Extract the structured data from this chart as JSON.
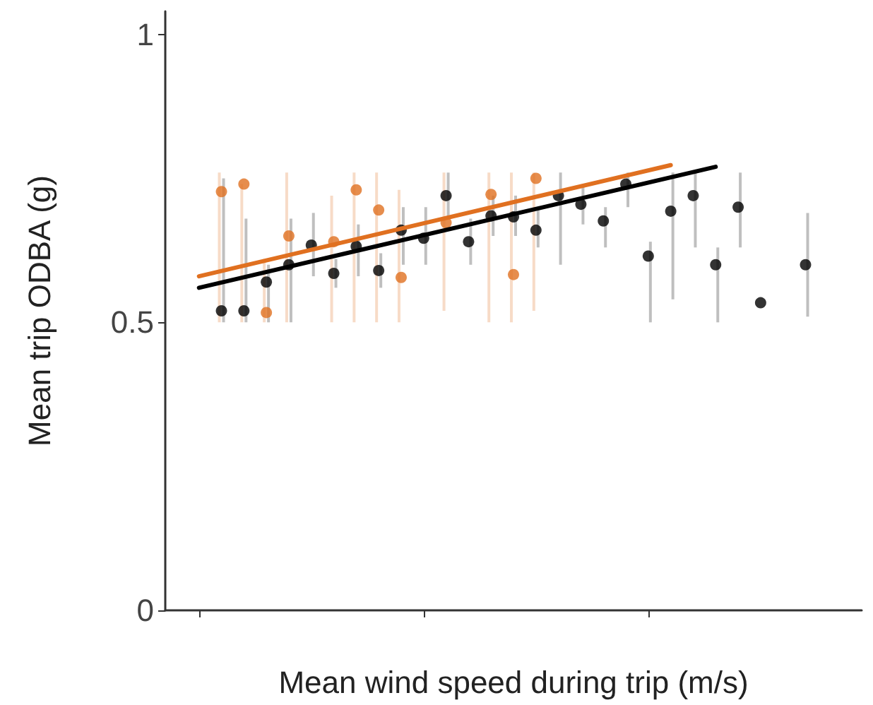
{
  "chart_data": {
    "type": "scatter",
    "xlabel": "Mean wind speed during trip (m/s)",
    "ylabel": "Mean trip ODBA (g)",
    "categories": [
      null,
      null,
      null,
      null,
      null,
      null,
      null,
      null,
      null,
      null,
      null,
      null,
      null,
      null,
      null,
      null,
      null,
      null,
      null,
      null,
      null,
      null,
      null,
      null,
      null,
      null,
      null,
      null,
      null,
      null,
      null
    ],
    "ylim": [
      0,
      1.04
    ],
    "yticks": [
      0,
      0.5,
      1
    ],
    "grid": false,
    "marker": "circle",
    "series": [
      {
        "color": "#e07020",
        "values": [
          null,
          null,
          0.727,
          0.74,
          0.517,
          0.65,
          null,
          0.64,
          0.73,
          0.695,
          0.578,
          null,
          0.673,
          null,
          0.722,
          0.583,
          0.75,
          null,
          null,
          null,
          null,
          null,
          null,
          null,
          null,
          null,
          null,
          null,
          null,
          null,
          null
        ],
        "errors": [
          null,
          null,
          [
            0.5,
            0.76
          ],
          [
            0.5,
            0.74
          ],
          [
            0.5,
            0.61
          ],
          [
            0.5,
            0.76
          ],
          null,
          [
            0.5,
            0.72
          ],
          [
            0.5,
            0.76
          ],
          [
            0.5,
            0.76
          ],
          [
            0.5,
            0.73
          ],
          null,
          [
            0.52,
            0.76
          ],
          null,
          [
            0.5,
            0.76
          ],
          [
            0.5,
            0.76
          ],
          [
            0.52,
            0.76
          ],
          null,
          null,
          null,
          null,
          null,
          null,
          null,
          null,
          null,
          null,
          null,
          null,
          null,
          null
        ]
      },
      {
        "color": "#000000",
        "values": [
          null,
          null,
          0.52,
          0.52,
          0.57,
          0.6,
          0.634,
          0.585,
          0.632,
          0.59,
          0.66,
          0.646,
          0.72,
          0.64,
          0.685,
          0.683,
          0.66,
          0.72,
          0.705,
          0.676,
          0.74,
          0.615,
          0.693,
          0.72,
          0.6,
          0.7,
          0.534,
          null,
          0.6,
          null,
          null
        ],
        "errors": [
          null,
          null,
          [
            0.5,
            0.75
          ],
          [
            0.5,
            0.68
          ],
          [
            0.5,
            0.6
          ],
          [
            0.5,
            0.68
          ],
          [
            0.58,
            0.69
          ],
          [
            0.56,
            0.61
          ],
          [
            0.58,
            0.67
          ],
          [
            0.56,
            0.62
          ],
          [
            0.6,
            0.7
          ],
          [
            0.6,
            0.7
          ],
          [
            0.68,
            0.76
          ],
          [
            0.6,
            0.68
          ],
          [
            0.65,
            0.72
          ],
          [
            0.65,
            0.72
          ],
          [
            0.63,
            0.7
          ],
          [
            0.6,
            0.76
          ],
          [
            0.67,
            0.74
          ],
          [
            0.63,
            0.7
          ],
          [
            0.7,
            0.76
          ],
          [
            0.5,
            0.64
          ],
          [
            0.54,
            0.76
          ],
          [
            0.63,
            0.76
          ],
          [
            0.5,
            0.63
          ],
          [
            0.63,
            0.76
          ],
          null,
          null,
          [
            0.51,
            0.69
          ],
          null,
          null
        ]
      },
      {
        "type": "line",
        "marker": "none",
        "color": "#e07020",
        "values": [
          null,
          0.58,
          null,
          null,
          null,
          null,
          null,
          null,
          null,
          null,
          null,
          null,
          null,
          null,
          null,
          null,
          null,
          null,
          null,
          null,
          null,
          null,
          0.773,
          null,
          null,
          null,
          null,
          null,
          null,
          null,
          null
        ]
      },
      {
        "type": "line",
        "marker": "none",
        "color": "#000000",
        "values": [
          null,
          0.56,
          null,
          null,
          null,
          null,
          null,
          null,
          null,
          null,
          null,
          null,
          null,
          null,
          null,
          null,
          null,
          null,
          null,
          null,
          null,
          null,
          null,
          null,
          0.77,
          null,
          null,
          null,
          null,
          null,
          null
        ]
      }
    ]
  }
}
